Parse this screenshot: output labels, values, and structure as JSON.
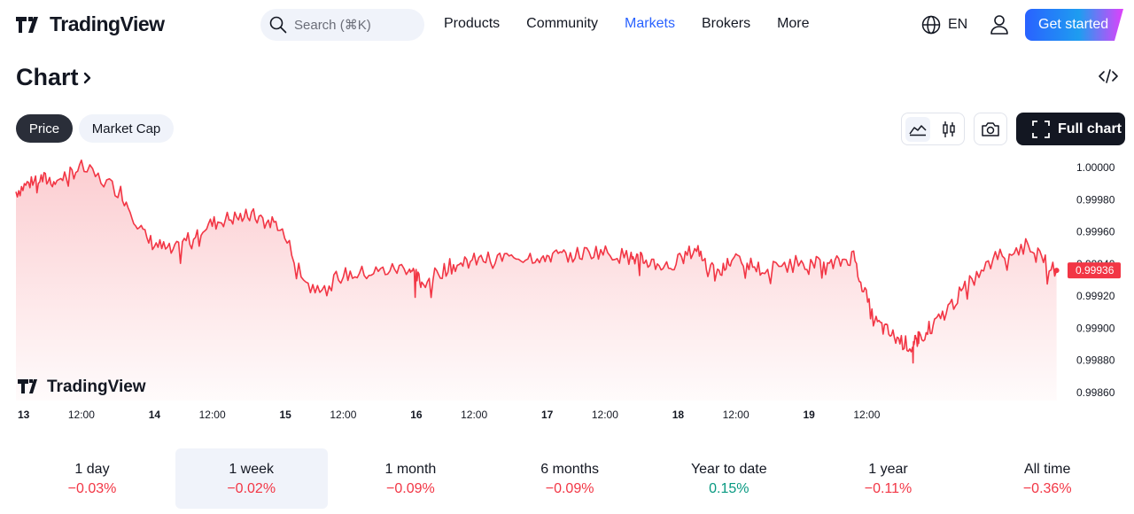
{
  "header": {
    "logo_text": "TradingView",
    "search_placeholder": "Search (⌘K)",
    "nav": [
      "Products",
      "Community",
      "Markets",
      "Brokers",
      "More"
    ],
    "active_nav": "Markets",
    "language": "EN",
    "cta_label": "Get started"
  },
  "title": "Chart",
  "toolbar": {
    "price_tab": "Price",
    "mcap_tab": "Market Cap",
    "full_chart_label": "Full chart",
    "icons": [
      "area-chart-icon",
      "candles-icon",
      "camera-icon",
      "fullscreen-icon",
      "embed-code-icon"
    ]
  },
  "chart_data": {
    "type": "area",
    "watermark": "TradingView",
    "color": "#f23645",
    "x_tick_labels": [
      "13",
      "12:00",
      "14",
      "12:00",
      "15",
      "12:00",
      "16",
      "12:00",
      "17",
      "12:00",
      "18",
      "12:00",
      "19",
      "12:00"
    ],
    "y_tick_labels": [
      "1.00000",
      "0.99980",
      "0.99960",
      "0.99940",
      "0.99920",
      "0.99900",
      "0.99880",
      "0.99860"
    ],
    "ylim": [
      0.99855,
      1.00005
    ],
    "last_value": "0.99936",
    "x": [
      0,
      0.15,
      0.3,
      0.5,
      0.8,
      1.0,
      1.2,
      1.4,
      1.6,
      1.8,
      2.0,
      2.25,
      2.5,
      2.75,
      3.0,
      3.1,
      3.3,
      3.5,
      3.75,
      4.0,
      4.2,
      4.45,
      4.7,
      4.8,
      5.0,
      5.2,
      5.35,
      5.5,
      5.7,
      6.0,
      6.2,
      6.4,
      6.55,
      6.7,
      6.85,
      6.9,
      7.05,
      7.25,
      7.5,
      7.75,
      7.95
    ],
    "y": [
      0.99985,
      0.99993,
      0.99992,
      1.0,
      0.99985,
      0.99955,
      0.99947,
      0.99962,
      0.99968,
      0.9997,
      0.99965,
      0.99925,
      0.99933,
      0.99935,
      0.99938,
      0.99928,
      0.99938,
      0.99942,
      0.99944,
      0.99945,
      0.99945,
      0.99948,
      0.99944,
      0.99942,
      0.99938,
      0.9995,
      0.99932,
      0.99945,
      0.99936,
      0.99942,
      0.99938,
      0.99945,
      0.99905,
      0.99895,
      0.99888,
      0.99895,
      0.99905,
      0.99925,
      0.99945,
      0.99952,
      0.99936
    ]
  },
  "periods": [
    {
      "label": "1 day",
      "change": "−0.03%",
      "sign": "neg"
    },
    {
      "label": "1 week",
      "change": "−0.02%",
      "sign": "neg",
      "selected": true
    },
    {
      "label": "1 month",
      "change": "−0.09%",
      "sign": "neg"
    },
    {
      "label": "6 months",
      "change": "−0.09%",
      "sign": "neg"
    },
    {
      "label": "Year to date",
      "change": "0.15%",
      "sign": "pos"
    },
    {
      "label": "1 year",
      "change": "−0.11%",
      "sign": "neg"
    },
    {
      "label": "All time",
      "change": "−0.36%",
      "sign": "neg"
    }
  ]
}
